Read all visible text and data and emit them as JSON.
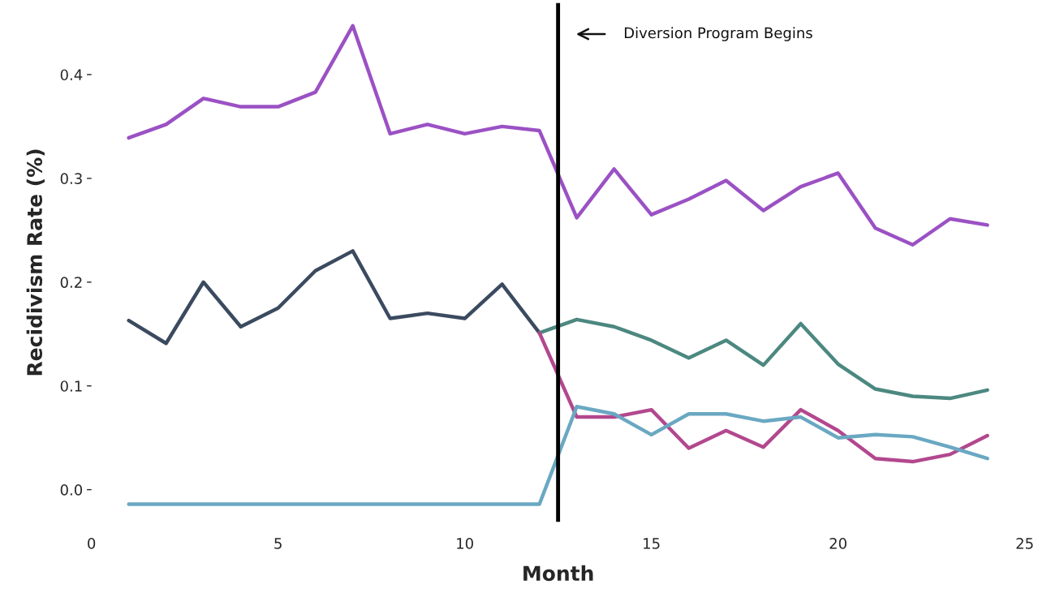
{
  "chart_data": {
    "type": "line",
    "xlabel": "Month",
    "ylabel": "Recidivism Rate (%)",
    "xlim": [
      0,
      25
    ],
    "ylim": [
      -0.031,
      0.469
    ],
    "xticks": [
      0,
      5,
      10,
      15,
      20,
      25
    ],
    "yticks": [
      {
        "value": 0,
        "label": "0.0"
      },
      0.1,
      0.2,
      0.3,
      0.4
    ],
    "grid": false,
    "line_style": "solid",
    "marker": "none",
    "ref_lines": [
      {
        "axis": "x",
        "value": 12.5,
        "label": "Diversion Program Begins",
        "color": "#000000"
      }
    ],
    "series": [
      {
        "color": "#9b51c4",
        "x": [
          1,
          2,
          3,
          4,
          5,
          6,
          7,
          8,
          9,
          10,
          11,
          12,
          13,
          14,
          15,
          16,
          17,
          18,
          19,
          20,
          21,
          22,
          23,
          24
        ],
        "values": [
          0.339,
          0.352,
          0.377,
          0.369,
          0.369,
          0.383,
          0.447,
          0.343,
          0.352,
          0.343,
          0.35,
          0.346,
          0.262,
          0.309,
          0.265,
          0.28,
          0.298,
          0.269,
          0.292,
          0.305,
          0.252,
          0.236,
          0.261,
          0.255
        ]
      },
      {
        "color": "#3b4a5f",
        "x": [
          1,
          2,
          3,
          4,
          5,
          6,
          7,
          8,
          9,
          10,
          11,
          12
        ],
        "values": [
          0.163,
          0.141,
          0.2,
          0.157,
          0.175,
          0.211,
          0.23,
          0.165,
          0.17,
          0.165,
          0.198,
          0.151
        ]
      },
      {
        "color": "#4c8880",
        "x": [
          12,
          13,
          14,
          15,
          16,
          17,
          18,
          19,
          20,
          21,
          22,
          23,
          24
        ],
        "values": [
          0.151,
          0.164,
          0.157,
          0.144,
          0.127,
          0.144,
          0.12,
          0.16,
          0.121,
          0.097,
          0.09,
          0.088,
          0.096
        ]
      },
      {
        "color": "#b2488e",
        "x": [
          12,
          13,
          14,
          15,
          16,
          17,
          18,
          19,
          20,
          21,
          22,
          23,
          24
        ],
        "values": [
          0.151,
          0.07,
          0.07,
          0.077,
          0.04,
          0.057,
          0.041,
          0.077,
          0.057,
          0.03,
          0.027,
          0.034,
          0.052
        ]
      },
      {
        "color": "#6aa8c2",
        "x": [
          1,
          2,
          3,
          4,
          5,
          6,
          7,
          8,
          9,
          10,
          11,
          12,
          13,
          14,
          15,
          16,
          17,
          18,
          19,
          20,
          21,
          22,
          23,
          24
        ],
        "values": [
          -0.014,
          -0.014,
          -0.014,
          -0.014,
          -0.014,
          -0.014,
          -0.014,
          -0.014,
          -0.014,
          -0.014,
          -0.014,
          -0.014,
          0.08,
          0.073,
          0.053,
          0.073,
          0.073,
          0.066,
          0.07,
          0.05,
          0.053,
          0.051,
          0.041,
          0.03
        ]
      }
    ]
  }
}
